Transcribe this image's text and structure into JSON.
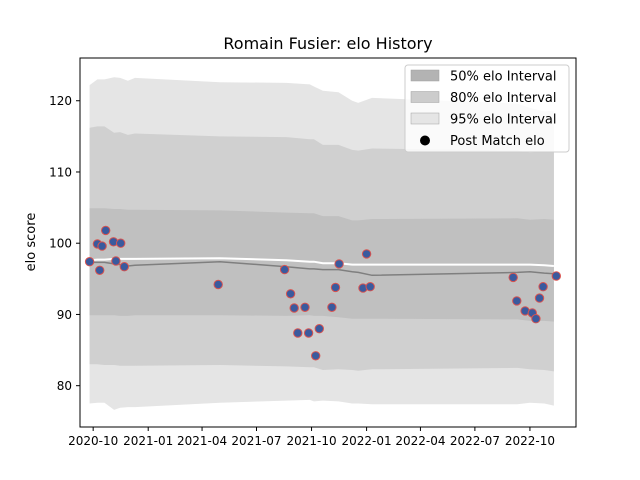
{
  "chart_data": {
    "type": "scatter",
    "title": "Romain Fusier: elo History",
    "xlabel": "",
    "ylabel": "elo score",
    "xlim": [
      "2020-09-09",
      "2022-12-17"
    ],
    "ylim": [
      74.2,
      126
    ],
    "grid": false,
    "legend_position": "top-right",
    "x_ticks": [
      "2020-10",
      "2021-01",
      "2021-04",
      "2021-07",
      "2021-10",
      "2022-01",
      "2022-04",
      "2022-07",
      "2022-10"
    ],
    "y_ticks": [
      80,
      90,
      100,
      110,
      120
    ],
    "legend": [
      {
        "label": "50% elo Interval",
        "kind": "band",
        "color": "#b3b3b3"
      },
      {
        "label": "80% elo Interval",
        "kind": "band",
        "color": "#cccccc"
      },
      {
        "label": "95% elo Interval",
        "kind": "band",
        "color": "#e5e5e5"
      },
      {
        "label": "Post Match elo",
        "kind": "marker",
        "color": "#000000"
      }
    ],
    "colors": {
      "band50": "#c0c0c0",
      "band80": "#d0d0d0",
      "band95": "#e5e5e5",
      "mean_line": "#7f7f7f",
      "white_line": "#ffffff",
      "point_fill": "#3a5a9e",
      "point_edge": "#d9534f"
    },
    "bands": {
      "dates": [
        "2020-09-25",
        "2020-10-08",
        "2020-10-20",
        "2020-11-05",
        "2020-11-15",
        "2020-11-28",
        "2020-12-10",
        "2021-05-01",
        "2021-08-20",
        "2021-09-28",
        "2021-10-05",
        "2021-10-20",
        "2021-11-15",
        "2021-12-08",
        "2021-12-18",
        "2022-01-10",
        "2022-09-10",
        "2022-10-01",
        "2022-10-25",
        "2022-11-10"
      ],
      "p95_upper": [
        122.2,
        123.0,
        123.0,
        123.3,
        123.2,
        122.8,
        123.2,
        122.6,
        122.5,
        122.3,
        122.0,
        121.4,
        121.2,
        120.0,
        119.7,
        120.4,
        119.6,
        119.0,
        118.5,
        118.6
      ],
      "p80_upper": [
        116.2,
        116.4,
        116.4,
        115.5,
        115.6,
        115.2,
        115.4,
        115.0,
        114.9,
        114.6,
        114.6,
        113.8,
        113.8,
        113.1,
        113.0,
        113.3,
        113.0,
        112.7,
        112.8,
        112.8
      ],
      "p50_upper": [
        104.9,
        104.9,
        104.9,
        104.8,
        104.8,
        104.7,
        104.7,
        104.6,
        104.3,
        104.2,
        104.2,
        103.8,
        103.8,
        103.2,
        103.2,
        103.4,
        103.5,
        103.3,
        103.4,
        103.3
      ],
      "p50_lower": [
        89.9,
        89.9,
        89.9,
        89.9,
        89.8,
        89.8,
        89.9,
        89.9,
        89.8,
        89.9,
        89.8,
        89.8,
        89.6,
        89.4,
        89.4,
        89.4,
        89.3,
        89.1,
        89.1,
        89.0
      ],
      "p80_lower": [
        83.0,
        83.0,
        82.9,
        82.9,
        82.8,
        82.8,
        82.8,
        82.9,
        82.7,
        82.6,
        82.6,
        82.2,
        82.3,
        82.2,
        82.1,
        82.3,
        82.5,
        82.3,
        82.2,
        82.0
      ],
      "p95_lower": [
        77.5,
        77.6,
        77.6,
        76.6,
        76.9,
        77.0,
        77.0,
        77.6,
        77.9,
        78.0,
        77.8,
        77.9,
        77.8,
        77.5,
        77.5,
        77.4,
        77.4,
        77.6,
        77.5,
        77.2
      ],
      "mean": [
        97.3,
        97.3,
        97.3,
        97.1,
        97.0,
        96.8,
        96.9,
        97.4,
        96.7,
        96.4,
        96.4,
        96.3,
        96.3,
        96.0,
        95.9,
        95.5,
        95.9,
        96.0,
        95.8,
        95.7
      ],
      "white": [
        97.6,
        97.7,
        97.7,
        97.8,
        97.8,
        97.8,
        97.8,
        97.9,
        97.6,
        97.4,
        97.4,
        97.2,
        97.2,
        97.0,
        97.0,
        97.0,
        97.0,
        97.0,
        96.9,
        96.8
      ]
    },
    "points": [
      {
        "x": "2020-09-25",
        "y": 97.4
      },
      {
        "x": "2020-10-08",
        "y": 99.9
      },
      {
        "x": "2020-10-12",
        "y": 96.2
      },
      {
        "x": "2020-10-16",
        "y": 99.6
      },
      {
        "x": "2020-10-22",
        "y": 101.8
      },
      {
        "x": "2020-11-04",
        "y": 100.2
      },
      {
        "x": "2020-11-08",
        "y": 97.5
      },
      {
        "x": "2020-11-16",
        "y": 100.0
      },
      {
        "x": "2020-11-22",
        "y": 96.7
      },
      {
        "x": "2021-04-28",
        "y": 94.2
      },
      {
        "x": "2021-08-17",
        "y": 96.3
      },
      {
        "x": "2021-08-27",
        "y": 92.9
      },
      {
        "x": "2021-09-02",
        "y": 90.9
      },
      {
        "x": "2021-09-08",
        "y": 87.4
      },
      {
        "x": "2021-09-20",
        "y": 91.0
      },
      {
        "x": "2021-09-26",
        "y": 87.4
      },
      {
        "x": "2021-10-08",
        "y": 84.2
      },
      {
        "x": "2021-10-14",
        "y": 88.0
      },
      {
        "x": "2021-11-04",
        "y": 91.0
      },
      {
        "x": "2021-11-10",
        "y": 93.8
      },
      {
        "x": "2021-11-16",
        "y": 97.1
      },
      {
        "x": "2021-12-26",
        "y": 93.7
      },
      {
        "x": "2022-01-01",
        "y": 98.5
      },
      {
        "x": "2022-01-07",
        "y": 93.9
      },
      {
        "x": "2022-09-03",
        "y": 95.2
      },
      {
        "x": "2022-09-09",
        "y": 91.9
      },
      {
        "x": "2022-09-23",
        "y": 90.5
      },
      {
        "x": "2022-10-05",
        "y": 90.2
      },
      {
        "x": "2022-10-11",
        "y": 89.4
      },
      {
        "x": "2022-10-17",
        "y": 92.3
      },
      {
        "x": "2022-10-23",
        "y": 93.9
      },
      {
        "x": "2022-11-14",
        "y": 95.4
      }
    ]
  }
}
